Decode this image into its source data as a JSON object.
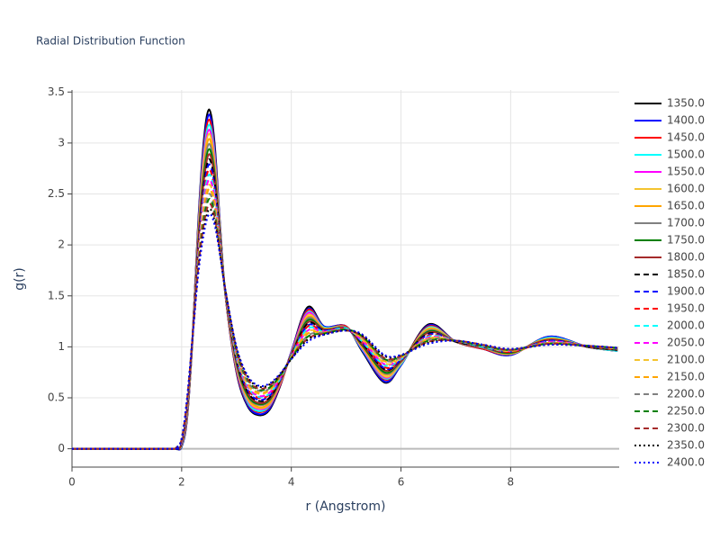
{
  "chart_data": {
    "type": "line",
    "title": "Radial Distribution Function",
    "x_label": "r (Angstrom)",
    "y_label": "g(r)",
    "xlim": [
      0,
      9.98
    ],
    "ylim": [
      -0.18,
      3.52
    ],
    "xticks": [
      0,
      2,
      4,
      6,
      8
    ],
    "yticks": [
      0,
      0.5,
      1,
      1.5,
      2,
      2.5,
      3,
      3.5
    ],
    "grid": true,
    "legend": "right",
    "x": [
      0,
      1.8,
      1.9,
      2.0,
      2.1,
      2.2,
      2.3,
      2.4,
      2.5,
      2.6,
      2.7,
      2.8,
      3.0,
      3.2,
      3.4,
      3.6,
      3.8,
      4.0,
      4.3,
      4.6,
      5.0,
      5.3,
      5.7,
      6.0,
      6.5,
      7.0,
      7.5,
      8.0,
      8.7,
      9.4,
      9.95
    ],
    "series": [
      {
        "name": "1350.0",
        "color": "#000000",
        "dash": "solid",
        "values": [
          0,
          0,
          0,
          0.02,
          0.3,
          1.1,
          2.2,
          3.0,
          3.33,
          3.0,
          2.2,
          1.5,
          0.75,
          0.42,
          0.33,
          0.38,
          0.62,
          0.95,
          1.39,
          1.2,
          1.2,
          0.95,
          0.65,
          0.82,
          1.22,
          1.05,
          0.98,
          0.92,
          1.1,
          1.0,
          0.96
        ]
      },
      {
        "name": "1400.0",
        "color": "#0000ff",
        "dash": "solid",
        "values": [
          0,
          0,
          0,
          0.02,
          0.31,
          1.1,
          2.18,
          2.96,
          3.28,
          2.96,
          2.19,
          1.5,
          0.76,
          0.43,
          0.34,
          0.39,
          0.63,
          0.95,
          1.37,
          1.2,
          1.2,
          0.96,
          0.66,
          0.82,
          1.21,
          1.05,
          0.98,
          0.92,
          1.1,
          1.0,
          0.96
        ]
      },
      {
        "name": "1450.0",
        "color": "#ff0000",
        "dash": "solid",
        "values": [
          0,
          0,
          0,
          0.03,
          0.32,
          1.1,
          2.15,
          2.91,
          3.23,
          2.92,
          2.17,
          1.5,
          0.77,
          0.45,
          0.36,
          0.41,
          0.63,
          0.94,
          1.36,
          1.19,
          1.2,
          0.97,
          0.68,
          0.83,
          1.2,
          1.05,
          0.98,
          0.93,
          1.09,
          1.0,
          0.96
        ]
      },
      {
        "name": "1500.0",
        "color": "#00ffff",
        "dash": "solid",
        "values": [
          0,
          0,
          0,
          0.03,
          0.33,
          1.1,
          2.13,
          2.87,
          3.18,
          2.89,
          2.16,
          1.51,
          0.79,
          0.46,
          0.37,
          0.42,
          0.64,
          0.94,
          1.34,
          1.19,
          1.19,
          0.97,
          0.69,
          0.83,
          1.19,
          1.05,
          0.99,
          0.93,
          1.09,
          1.0,
          0.96
        ]
      },
      {
        "name": "1550.0",
        "color": "#ff00ff",
        "dash": "solid",
        "values": [
          0,
          0,
          0,
          0.04,
          0.34,
          1.1,
          2.1,
          2.83,
          3.13,
          2.85,
          2.14,
          1.51,
          0.8,
          0.48,
          0.39,
          0.43,
          0.64,
          0.94,
          1.33,
          1.18,
          1.19,
          0.98,
          0.7,
          0.84,
          1.18,
          1.05,
          0.99,
          0.93,
          1.08,
          1.0,
          0.97
        ]
      },
      {
        "name": "1600.0",
        "color": "#f4c430",
        "dash": "solid",
        "values": [
          0,
          0,
          0,
          0.04,
          0.35,
          1.1,
          2.08,
          2.79,
          3.09,
          2.81,
          2.13,
          1.51,
          0.81,
          0.49,
          0.4,
          0.44,
          0.65,
          0.93,
          1.31,
          1.18,
          1.19,
          0.99,
          0.71,
          0.84,
          1.18,
          1.05,
          0.99,
          0.93,
          1.08,
          1.0,
          0.97
        ]
      },
      {
        "name": "1650.0",
        "color": "#ffa500",
        "dash": "solid",
        "values": [
          0,
          0,
          0,
          0.04,
          0.36,
          1.1,
          2.06,
          2.74,
          3.04,
          2.77,
          2.11,
          1.51,
          0.82,
          0.51,
          0.41,
          0.45,
          0.65,
          0.93,
          1.29,
          1.18,
          1.19,
          1.0,
          0.73,
          0.85,
          1.17,
          1.05,
          0.99,
          0.94,
          1.08,
          1.0,
          0.97
        ]
      },
      {
        "name": "1700.0",
        "color": "#808080",
        "dash": "solid",
        "values": [
          0,
          0,
          0,
          0.05,
          0.37,
          1.1,
          2.03,
          2.7,
          2.99,
          2.73,
          2.1,
          1.52,
          0.83,
          0.52,
          0.43,
          0.47,
          0.66,
          0.93,
          1.28,
          1.17,
          1.19,
          1.01,
          0.74,
          0.85,
          1.16,
          1.05,
          0.99,
          0.94,
          1.07,
          1.0,
          0.97
        ]
      },
      {
        "name": "1750.0",
        "color": "#008000",
        "dash": "solid",
        "values": [
          0,
          0,
          0,
          0.05,
          0.38,
          1.1,
          2.01,
          2.66,
          2.94,
          2.7,
          2.09,
          1.52,
          0.85,
          0.53,
          0.44,
          0.48,
          0.67,
          0.92,
          1.26,
          1.17,
          1.18,
          1.01,
          0.75,
          0.86,
          1.15,
          1.05,
          1.0,
          0.94,
          1.07,
          1.0,
          0.97
        ]
      },
      {
        "name": "1800.0",
        "color": "#a52a2a",
        "dash": "solid",
        "values": [
          0,
          0,
          0,
          0.05,
          0.39,
          1.1,
          1.99,
          2.61,
          2.89,
          2.66,
          2.07,
          1.52,
          0.86,
          0.55,
          0.45,
          0.49,
          0.67,
          0.92,
          1.24,
          1.17,
          1.18,
          1.02,
          0.77,
          0.86,
          1.14,
          1.05,
          1.0,
          0.95,
          1.07,
          1.0,
          0.97
        ]
      },
      {
        "name": "1850.0",
        "color": "#000000",
        "dash": "dash",
        "values": [
          0,
          0,
          0,
          0.06,
          0.4,
          1.1,
          1.96,
          2.57,
          2.84,
          2.62,
          2.06,
          1.52,
          0.87,
          0.56,
          0.47,
          0.5,
          0.68,
          0.92,
          1.23,
          1.16,
          1.18,
          1.03,
          0.78,
          0.87,
          1.13,
          1.05,
          1.0,
          0.95,
          1.06,
          1.0,
          0.97
        ]
      },
      {
        "name": "1900.0",
        "color": "#0000ff",
        "dash": "dash",
        "values": [
          0,
          0,
          0.01,
          0.06,
          0.4,
          1.1,
          1.94,
          2.53,
          2.79,
          2.58,
          2.04,
          1.53,
          0.88,
          0.58,
          0.48,
          0.52,
          0.68,
          0.91,
          1.21,
          1.16,
          1.18,
          1.04,
          0.79,
          0.87,
          1.12,
          1.06,
          1.0,
          0.95,
          1.06,
          1.01,
          0.98
        ]
      },
      {
        "name": "1950.0",
        "color": "#ff0000",
        "dash": "dash",
        "values": [
          0,
          0,
          0.01,
          0.07,
          0.41,
          1.1,
          1.91,
          2.49,
          2.74,
          2.54,
          2.03,
          1.53,
          0.89,
          0.59,
          0.5,
          0.53,
          0.69,
          0.91,
          1.2,
          1.15,
          1.18,
          1.05,
          0.8,
          0.88,
          1.11,
          1.06,
          1.0,
          0.95,
          1.05,
          1.01,
          0.98
        ]
      },
      {
        "name": "2000.0",
        "color": "#00ffff",
        "dash": "dash",
        "values": [
          0,
          0,
          0.01,
          0.07,
          0.42,
          1.1,
          1.89,
          2.44,
          2.69,
          2.51,
          2.01,
          1.53,
          0.9,
          0.61,
          0.51,
          0.54,
          0.69,
          0.91,
          1.18,
          1.15,
          1.18,
          1.05,
          0.82,
          0.88,
          1.1,
          1.06,
          1.0,
          0.96,
          1.05,
          1.01,
          0.98
        ]
      },
      {
        "name": "2050.0",
        "color": "#ff00ff",
        "dash": "dash",
        "values": [
          0,
          0,
          0.01,
          0.07,
          0.43,
          1.1,
          1.87,
          2.4,
          2.64,
          2.47,
          2.0,
          1.53,
          0.92,
          0.62,
          0.52,
          0.55,
          0.7,
          0.9,
          1.16,
          1.15,
          1.17,
          1.06,
          0.83,
          0.89,
          1.09,
          1.06,
          1.01,
          0.96,
          1.05,
          1.01,
          0.98
        ]
      },
      {
        "name": "2100.0",
        "color": "#f4c430",
        "dash": "dash",
        "values": [
          0,
          0,
          0.01,
          0.08,
          0.44,
          1.1,
          1.84,
          2.36,
          2.59,
          2.43,
          1.99,
          1.54,
          0.93,
          0.63,
          0.54,
          0.57,
          0.71,
          0.9,
          1.15,
          1.14,
          1.17,
          1.07,
          0.84,
          0.89,
          1.08,
          1.06,
          1.01,
          0.96,
          1.04,
          1.01,
          0.98
        ]
      },
      {
        "name": "2150.0",
        "color": "#ffa500",
        "dash": "dash",
        "values": [
          0,
          0,
          0.01,
          0.08,
          0.45,
          1.1,
          1.82,
          2.31,
          2.55,
          2.39,
          1.97,
          1.54,
          0.94,
          0.65,
          0.55,
          0.58,
          0.71,
          0.9,
          1.13,
          1.14,
          1.17,
          1.08,
          0.86,
          0.9,
          1.08,
          1.06,
          1.01,
          0.97,
          1.04,
          1.01,
          0.98
        ]
      },
      {
        "name": "2200.0",
        "color": "#808080",
        "dash": "dash",
        "values": [
          0,
          0,
          0.01,
          0.08,
          0.46,
          1.1,
          1.8,
          2.27,
          2.5,
          2.35,
          1.96,
          1.54,
          0.95,
          0.66,
          0.57,
          0.59,
          0.72,
          0.89,
          1.11,
          1.14,
          1.17,
          1.09,
          0.87,
          0.9,
          1.07,
          1.06,
          1.01,
          0.97,
          1.04,
          1.01,
          0.98
        ]
      },
      {
        "name": "2250.0",
        "color": "#008000",
        "dash": "dash",
        "values": [
          0,
          0,
          0.01,
          0.09,
          0.47,
          1.1,
          1.77,
          2.23,
          2.45,
          2.31,
          1.94,
          1.54,
          0.96,
          0.68,
          0.58,
          0.6,
          0.72,
          0.89,
          1.1,
          1.13,
          1.17,
          1.1,
          0.88,
          0.91,
          1.06,
          1.06,
          1.01,
          0.97,
          1.03,
          1.01,
          0.99
        ]
      },
      {
        "name": "2300.0",
        "color": "#a52a2a",
        "dash": "dash",
        "values": [
          0,
          0,
          0.01,
          0.09,
          0.48,
          1.1,
          1.75,
          2.19,
          2.4,
          2.28,
          1.93,
          1.55,
          0.98,
          0.69,
          0.59,
          0.62,
          0.73,
          0.89,
          1.08,
          1.13,
          1.16,
          1.1,
          0.89,
          0.91,
          1.05,
          1.06,
          1.02,
          0.97,
          1.03,
          1.01,
          0.99
        ]
      },
      {
        "name": "2350.0",
        "color": "#000000",
        "dash": "dot",
        "values": [
          0,
          0,
          0.01,
          0.1,
          0.49,
          1.1,
          1.72,
          2.14,
          2.35,
          2.24,
          1.91,
          1.55,
          0.99,
          0.71,
          0.61,
          0.63,
          0.73,
          0.88,
          1.07,
          1.12,
          1.16,
          1.11,
          0.91,
          0.92,
          1.04,
          1.06,
          1.02,
          0.98,
          1.02,
          1.01,
          0.99
        ]
      },
      {
        "name": "2400.0",
        "color": "#0000ff",
        "dash": "dot",
        "values": [
          0,
          0,
          0.01,
          0.1,
          0.5,
          1.1,
          1.7,
          2.1,
          2.3,
          2.2,
          1.9,
          1.55,
          1.0,
          0.72,
          0.62,
          0.64,
          0.74,
          0.88,
          1.05,
          1.12,
          1.16,
          1.12,
          0.92,
          0.92,
          1.03,
          1.06,
          1.02,
          0.98,
          1.02,
          1.01,
          0.99
        ]
      }
    ]
  }
}
